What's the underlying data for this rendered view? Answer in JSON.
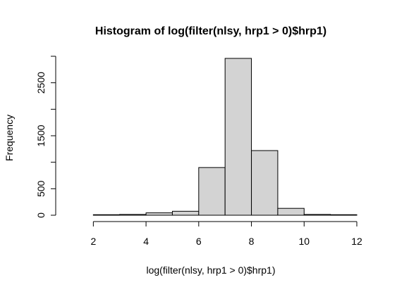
{
  "chart_data": {
    "type": "histogram",
    "title": "Histogram of log(filter(nlsy, hrp1 > 0)$hrp1)",
    "xlabel": "log(filter(nlsy, hrp1 > 0)$hrp1)",
    "ylabel": "Frequency",
    "xlim": [
      1,
      12
    ],
    "ylim": [
      0,
      3000
    ],
    "x_ticks": [
      2,
      4,
      6,
      8,
      10,
      12
    ],
    "y_ticks": [
      0,
      500,
      1500,
      2500
    ],
    "bins": [
      {
        "start": 1,
        "end": 2,
        "count": 0
      },
      {
        "start": 2,
        "end": 3,
        "count": 10
      },
      {
        "start": 3,
        "end": 4,
        "count": 15
      },
      {
        "start": 4,
        "end": 5,
        "count": 45
      },
      {
        "start": 5,
        "end": 6,
        "count": 75
      },
      {
        "start": 6,
        "end": 7,
        "count": 900
      },
      {
        "start": 7,
        "end": 8,
        "count": 2960
      },
      {
        "start": 8,
        "end": 9,
        "count": 1220
      },
      {
        "start": 9,
        "end": 10,
        "count": 130
      },
      {
        "start": 10,
        "end": 11,
        "count": 15
      },
      {
        "start": 11,
        "end": 12,
        "count": 10
      }
    ],
    "bar_fill": "#d3d3d3",
    "bar_stroke": "#000000",
    "grid": false,
    "legend": "none"
  }
}
